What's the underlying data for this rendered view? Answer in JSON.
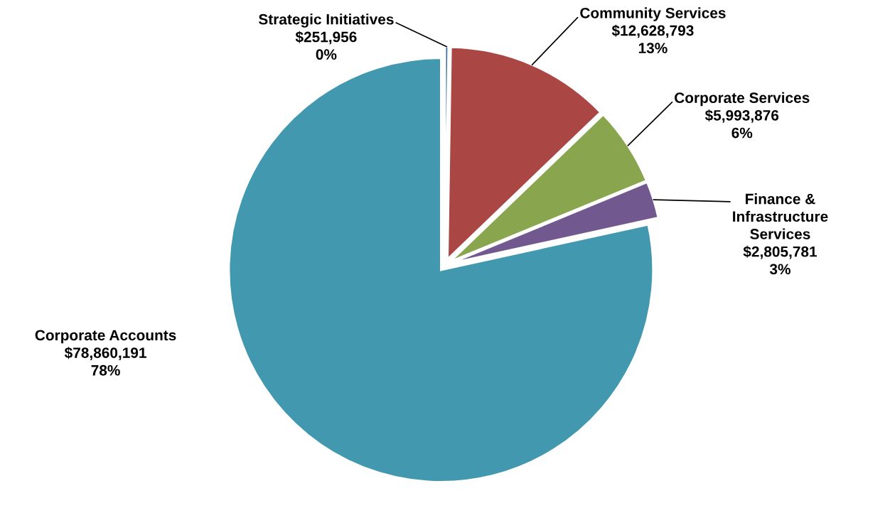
{
  "chart_data": {
    "type": "pie",
    "categories": [
      "Strategic Initiatives",
      "Community Services",
      "Corporate Services",
      "Finance &\nInfrastructure\nServices",
      "Corporate Accounts"
    ],
    "values": [
      251956,
      12628793,
      5993876,
      2805781,
      78860191
    ],
    "value_labels": [
      "$251,956\n0%",
      "$12,628,793\n13%",
      "$5,993,876\n6%",
      "$2,805,781\n3%",
      "$78,860,191\n78%"
    ],
    "colors": [
      "#3f6fa8",
      "#aa4643",
      "#89a54e",
      "#71588f",
      "#4198af"
    ],
    "legend": false
  }
}
